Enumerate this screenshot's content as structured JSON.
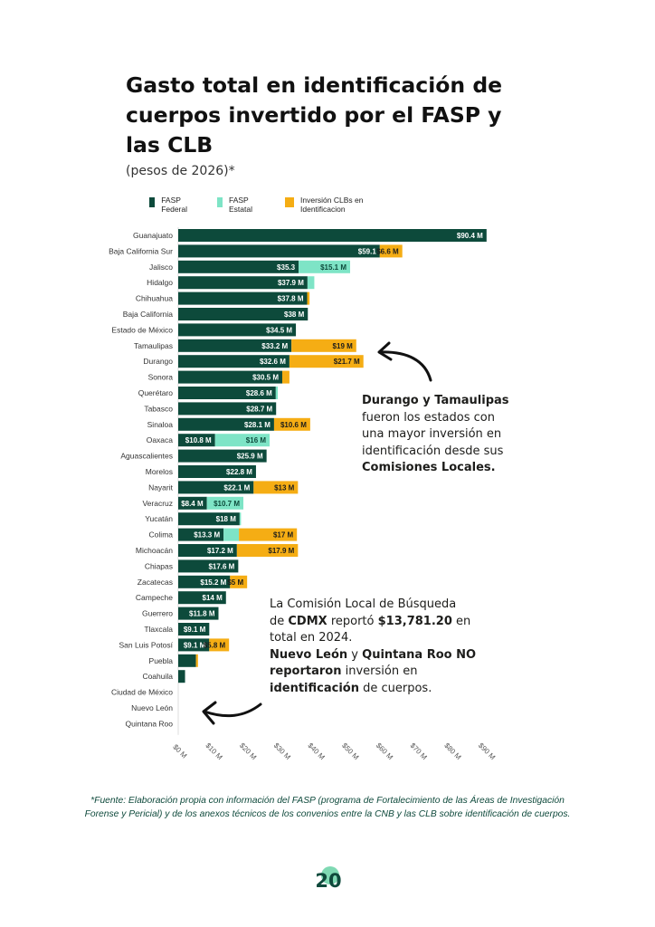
{
  "title": "Gasto total en identificación de cuerpos invertido por el FASP y las CLB",
  "subtitle": "(pesos de 2026)*",
  "colors": {
    "federal": "#0d4a3b",
    "estatal": "#7ee4c6",
    "clb": "#f5ad14"
  },
  "chart_data": {
    "type": "bar",
    "orientation": "horizontal",
    "stacked": true,
    "unit": "M",
    "xlim": [
      0,
      90
    ],
    "x_ticks": [
      "$0 M",
      "$10 M",
      "$20 M",
      "$30 M",
      "$40 M",
      "$50 M",
      "$60 M",
      "$70 M",
      "$80 M",
      "$90 M"
    ],
    "grid": false,
    "legend_position": "top-left",
    "categories": [
      "Guanajuato",
      "Baja California Sur",
      "Jalisco",
      "Hidalgo",
      "Chihuahua",
      "Baja California",
      "Estado de México",
      "Tamaulipas",
      "Durango",
      "Sonora",
      "Querétaro",
      "Tabasco",
      "Sinaloa",
      "Oaxaca",
      "Aguascalientes",
      "Morelos",
      "Nayarit",
      "Veracruz",
      "Yucatán",
      "Colima",
      "Michoacán",
      "Chiapas",
      "Zacatecas",
      "Campeche",
      "Guerrero",
      "Tlaxcala",
      "San Luis Potosí",
      "Puebla",
      "Coahuila",
      "Ciudad de México",
      "Nuevo León",
      "Quintana Roo"
    ],
    "series": [
      {
        "name": "FASP Federal",
        "values": [
          90.4,
          59.1,
          35.3,
          37.9,
          37.8,
          38,
          34.5,
          33.2,
          32.6,
          30.5,
          28.6,
          28.7,
          28.1,
          10.8,
          25.9,
          22.8,
          22.1,
          8.4,
          18,
          13.3,
          17.2,
          17.6,
          15.2,
          14,
          11.8,
          9.1,
          9.1,
          5.2,
          2.0,
          0,
          0,
          0
        ],
        "labels": [
          "$90.4 M",
          "$59.1",
          "$35.3",
          "$37.9 M",
          "$37.8 M",
          "$38 M",
          "$34.5 M",
          "$33.2 M",
          "$32.6 M",
          "$30.5 M",
          "$28.6 M",
          "$28.7 M",
          "$28.1 M",
          "$10.8 M",
          "$25.9 M",
          "$22.8 M",
          "$22.1 M",
          "$8.4 M",
          "$18 M",
          "$13.3 M",
          "$17.2 M",
          "$17.6 M",
          "$15.2 M",
          "$14 M",
          "$11.8 M",
          "$9.1 M",
          "$9.1 M",
          "",
          "",
          "",
          "",
          ""
        ]
      },
      {
        "name": "FASP Estatal",
        "values": [
          0,
          0,
          15.1,
          2.0,
          0,
          0,
          0,
          0,
          0,
          0,
          0.6,
          0,
          0,
          16,
          0,
          0,
          0,
          10.7,
          0.4,
          4.5,
          0,
          0,
          0,
          0,
          0,
          0,
          0,
          0,
          0,
          0,
          0,
          0
        ],
        "labels": [
          "",
          "",
          "$15.1 M",
          "",
          "",
          "",
          "",
          "",
          "",
          "",
          "",
          "",
          "",
          "$16 M",
          "",
          "",
          "",
          "$10.7 M",
          "",
          "",
          "",
          "",
          "",
          "",
          "",
          "",
          "",
          "",
          "",
          "",
          "",
          ""
        ]
      },
      {
        "name": "Inversión CLBs en Identificacion",
        "values": [
          0,
          6.6,
          0,
          0,
          0.7,
          0,
          0,
          19,
          21.7,
          2.1,
          0,
          0,
          10.6,
          0,
          0,
          0,
          13,
          0,
          0,
          17,
          17.9,
          0,
          5,
          0,
          0,
          0,
          5.8,
          0.6,
          0,
          0,
          0,
          0
        ],
        "labels": [
          "",
          "$6.6 M",
          "",
          "",
          "",
          "",
          "",
          "$19 M",
          "$21.7 M",
          "",
          "",
          "",
          "$10.6 M",
          "",
          "",
          "",
          "$13 M",
          "",
          "",
          "$17 M",
          "$17.9 M",
          "",
          "$5 M",
          "",
          "",
          "",
          "$5.8 M",
          "",
          "",
          "",
          "",
          ""
        ]
      }
    ]
  },
  "annotations": {
    "durango": {
      "line1": "Durango y Tamaulipas",
      "line2": "fueron los estados con",
      "line3": "una mayor inversión en",
      "line4": "identificación desde sus",
      "line5": "Comisiones Locales."
    },
    "cdmx": {
      "p1": "La Comisión Local de Búsqueda",
      "p2a": "de ",
      "p2b": "CDMX",
      "p2c": " reportó ",
      "p2d": "$13,781.20",
      "p2e": " en",
      "p3": "total en 2024.",
      "p4a": "Nuevo León",
      "p4b": " y ",
      "p4c": "Quintana Roo NO",
      "p5a": "reportaron",
      "p5b": " inversión en",
      "p6a": "identificación",
      "p6b": " de cuerpos."
    }
  },
  "source": "*Fuente: Elaboración propia con información del FASP (programa de Fortalecimiento de las Áreas de Investigación Forense y Pericial) y de los anexos técnicos de los convenios entre la CNB y las CLB sobre identificación de cuerpos.",
  "page_number": "20"
}
